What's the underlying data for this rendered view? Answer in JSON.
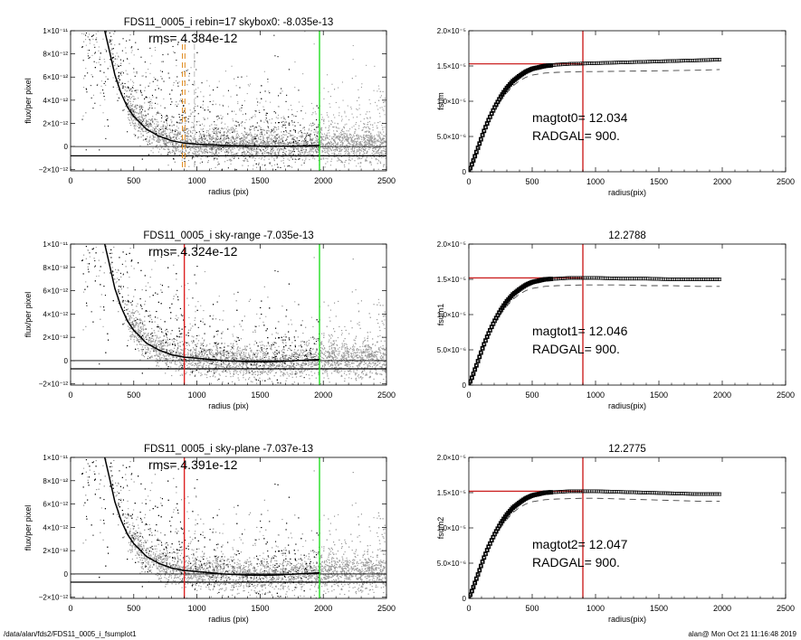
{
  "footer": {
    "path": "/data/alan/fds2/FDS11_0005_i_fsumplot1",
    "stamp": "alan@  Mon Oct 21 11:16:48 2019"
  },
  "chart_data": [
    {
      "type": "scatter",
      "title": "FDS11_0005_i rebin=17    skybox0: -8.035e-13",
      "annotation": "rms= 4.384e-12",
      "xlabel": "radius (pix)",
      "ylabel": "flux/per pixel",
      "xlim": [
        0,
        2500
      ],
      "ylim": [
        -2.1e-12,
        1e-11
      ],
      "xticks": [
        0,
        500,
        1000,
        1500,
        2000,
        2500
      ],
      "xtick_labels": [
        "0",
        "500",
        "1000",
        "1500",
        "2000",
        "2500"
      ],
      "yticks": [
        -2e-12,
        0,
        2e-12,
        4e-12,
        6e-12,
        8e-12,
        1e-11
      ],
      "ytick_labels": [
        "−2×10⁻¹²",
        "0",
        "2×10⁻¹²",
        "4×10⁻¹²",
        "6×10⁻¹²",
        "8×10⁻¹²",
        "1×10⁻¹¹"
      ],
      "hlines": [
        0,
        -8.035e-13
      ],
      "vlines": [
        {
          "x": 1970,
          "color": "#22dd22"
        }
      ],
      "dashed_vlines": [
        {
          "x": 885,
          "color": "#e08a1e"
        },
        {
          "x": 905,
          "color": "#e08a1e"
        },
        {
          "x": 980,
          "color": "#bbbbbb"
        }
      ],
      "profile": {
        "x": [
          270,
          300,
          350,
          400,
          450,
          500,
          600,
          700,
          800,
          900,
          1000,
          1200,
          1400,
          1600,
          1800,
          1970
        ],
        "y": [
          1e-11,
          8.6e-12,
          6.2e-12,
          4.6e-12,
          3.4e-12,
          2.6e-12,
          1.5e-12,
          9e-13,
          5e-13,
          3e-13,
          2e-13,
          1e-13,
          5e-14,
          3e-14,
          5e-14,
          1e-13
        ]
      },
      "scatter_colors": {
        "inner": "#000000",
        "outer": "#999999"
      }
    },
    {
      "type": "scatter",
      "title": "FDS11_0005_i sky-range -7.035e-13",
      "annotation": "rms= 4.324e-12",
      "xlabel": "radius (pix)",
      "ylabel": "flux/per pixel",
      "xlim": [
        0,
        2500
      ],
      "ylim": [
        -2.1e-12,
        1e-11
      ],
      "xticks": [
        0,
        500,
        1000,
        1500,
        2000,
        2500
      ],
      "xtick_labels": [
        "0",
        "500",
        "1000",
        "1500",
        "2000",
        "2500"
      ],
      "yticks": [
        -2e-12,
        0,
        2e-12,
        4e-12,
        6e-12,
        8e-12,
        1e-11
      ],
      "ytick_labels": [
        "−2×10⁻¹²",
        "0",
        "2×10⁻¹²",
        "4×10⁻¹²",
        "6×10⁻¹²",
        "8×10⁻¹²",
        "1×10⁻¹¹"
      ],
      "hlines": [
        0,
        -7.035e-13
      ],
      "vlines": [
        {
          "x": 900,
          "color": "#dd2222"
        },
        {
          "x": 1970,
          "color": "#22dd22"
        }
      ],
      "dashed_vlines": [],
      "profile": {
        "x": [
          270,
          300,
          350,
          400,
          450,
          500,
          600,
          700,
          800,
          900,
          1000,
          1200,
          1400,
          1600,
          1800,
          1970
        ],
        "y": [
          1e-11,
          8.6e-12,
          6.2e-12,
          4.6e-12,
          3.4e-12,
          2.6e-12,
          1.5e-12,
          9e-13,
          5e-13,
          3e-13,
          2e-13,
          0,
          -1e-13,
          -1e-13,
          0,
          1e-13
        ]
      },
      "scatter_colors": {
        "inner": "#000000",
        "outer": "#999999"
      }
    },
    {
      "type": "scatter",
      "title": "FDS11_0005_i sky-plane -7.037e-13",
      "annotation": "rms= 4.391e-12",
      "xlabel": "radius (pix)",
      "ylabel": "flux/per pixel",
      "xlim": [
        0,
        2500
      ],
      "ylim": [
        -2.1e-12,
        1e-11
      ],
      "xticks": [
        0,
        500,
        1000,
        1500,
        2000,
        2500
      ],
      "xtick_labels": [
        "0",
        "500",
        "1000",
        "1500",
        "2000",
        "2500"
      ],
      "yticks": [
        -2e-12,
        0,
        2e-12,
        4e-12,
        6e-12,
        8e-12,
        1e-11
      ],
      "ytick_labels": [
        "−2×10⁻¹²",
        "0",
        "2×10⁻¹²",
        "4×10⁻¹²",
        "6×10⁻¹²",
        "8×10⁻¹²",
        "1×10⁻¹¹"
      ],
      "hlines": [
        0,
        -7.037e-13
      ],
      "vlines": [
        {
          "x": 900,
          "color": "#dd2222"
        },
        {
          "x": 1970,
          "color": "#22dd22"
        }
      ],
      "dashed_vlines": [],
      "profile": {
        "x": [
          270,
          300,
          350,
          400,
          450,
          500,
          600,
          700,
          800,
          900,
          1000,
          1200,
          1400,
          1600,
          1800,
          1970
        ],
        "y": [
          1e-11,
          8.6e-12,
          6.2e-12,
          4.6e-12,
          3.4e-12,
          2.6e-12,
          1.5e-12,
          9e-13,
          5e-13,
          3e-13,
          2e-13,
          0,
          -1e-13,
          -1e-13,
          0,
          1e-13
        ]
      },
      "scatter_colors": {
        "inner": "#000000",
        "outer": "#999999"
      }
    },
    {
      "type": "line",
      "title": "",
      "annotation_lines": [
        "magtot0=  12.034",
        "RADGAL=    900."
      ],
      "xlabel": "radius(pix)",
      "ylabel": "fsum",
      "xlim": [
        0,
        2500
      ],
      "ylim": [
        0,
        2e-05
      ],
      "xticks": [
        0,
        500,
        1000,
        1500,
        2000,
        2500
      ],
      "xtick_labels": [
        "0",
        "500",
        "1000",
        "1500",
        "2000",
        "2500"
      ],
      "yticks": [
        0,
        5e-06,
        1e-05,
        1.5e-05,
        2e-05
      ],
      "ytick_labels": [
        "0",
        "5.0×10⁻⁶",
        "1.0×10⁻⁵",
        "1.5×10⁻⁵",
        "2.0×10⁻⁵"
      ],
      "vline": 900,
      "hline": 1.53e-05,
      "series": [
        {
          "style": "squares",
          "x": [
            0,
            30,
            60,
            90,
            120,
            150,
            200,
            250,
            300,
            350,
            400,
            450,
            500,
            600,
            700,
            800,
            900,
            1000,
            1200,
            1400,
            1600,
            1800,
            1980
          ],
          "y": [
            0,
            1.3e-06,
            2.8e-06,
            4.3e-06,
            5.8e-06,
            7.1e-06,
            9e-06,
            1.06e-05,
            1.19e-05,
            1.29e-05,
            1.36e-05,
            1.42e-05,
            1.46e-05,
            1.5e-05,
            1.52e-05,
            1.53e-05,
            1.535e-05,
            1.54e-05,
            1.55e-05,
            1.56e-05,
            1.57e-05,
            1.58e-05,
            1.59e-05
          ]
        },
        {
          "style": "dashed",
          "x": [
            0,
            30,
            60,
            90,
            120,
            150,
            200,
            250,
            300,
            350,
            400,
            450,
            500,
            600,
            700,
            800,
            900,
            1000,
            1200,
            1400,
            1600,
            1800,
            1980
          ],
          "y": [
            0,
            1.2e-06,
            2.6e-06,
            4e-06,
            5.4e-06,
            6.7e-06,
            8.5e-06,
            1e-05,
            1.12e-05,
            1.22e-05,
            1.29e-05,
            1.34e-05,
            1.37e-05,
            1.4e-05,
            1.41e-05,
            1.415e-05,
            1.42e-05,
            1.42e-05,
            1.425e-05,
            1.43e-05,
            1.435e-05,
            1.44e-05,
            1.45e-05
          ]
        }
      ]
    },
    {
      "type": "line",
      "title": "12.2788",
      "annotation_lines": [
        "magtot1=  12.046",
        "RADGAL=    900."
      ],
      "xlabel": "radius(pix)",
      "ylabel": "fsum1",
      "xlim": [
        0,
        2500
      ],
      "ylim": [
        0,
        2e-05
      ],
      "xticks": [
        0,
        500,
        1000,
        1500,
        2000,
        2500
      ],
      "xtick_labels": [
        "0",
        "500",
        "1000",
        "1500",
        "2000",
        "2500"
      ],
      "yticks": [
        0,
        5e-06,
        1e-05,
        1.5e-05,
        2e-05
      ],
      "ytick_labels": [
        "0",
        "5.0×10⁻⁶",
        "1.0×10⁻⁵",
        "1.5×10⁻⁵",
        "2.0×10⁻⁵"
      ],
      "vline": 900,
      "hline": 1.52e-05,
      "series": [
        {
          "style": "squares",
          "x": [
            0,
            30,
            60,
            90,
            120,
            150,
            200,
            250,
            300,
            350,
            400,
            450,
            500,
            600,
            700,
            800,
            900,
            1000,
            1200,
            1400,
            1600,
            1800,
            1980
          ],
          "y": [
            0,
            1.3e-06,
            2.8e-06,
            4.3e-06,
            5.8e-06,
            7.1e-06,
            9e-06,
            1.06e-05,
            1.19e-05,
            1.29e-05,
            1.36e-05,
            1.42e-05,
            1.46e-05,
            1.5e-05,
            1.51e-05,
            1.52e-05,
            1.52e-05,
            1.52e-05,
            1.51e-05,
            1.51e-05,
            1.5e-05,
            1.5e-05,
            1.5e-05
          ]
        },
        {
          "style": "dashed",
          "x": [
            0,
            30,
            60,
            90,
            120,
            150,
            200,
            250,
            300,
            350,
            400,
            450,
            500,
            600,
            700,
            800,
            900,
            1000,
            1200,
            1400,
            1600,
            1800,
            1980
          ],
          "y": [
            0,
            1.2e-06,
            2.6e-06,
            4e-06,
            5.4e-06,
            6.7e-06,
            8.5e-06,
            1e-05,
            1.12e-05,
            1.22e-05,
            1.29e-05,
            1.34e-05,
            1.37e-05,
            1.4e-05,
            1.41e-05,
            1.415e-05,
            1.42e-05,
            1.42e-05,
            1.42e-05,
            1.41e-05,
            1.41e-05,
            1.4e-05,
            1.4e-05
          ]
        }
      ]
    },
    {
      "type": "line",
      "title": "12.2775",
      "annotation_lines": [
        "magtot2=  12.047",
        "RADGAL=    900."
      ],
      "xlabel": "radius(pix)",
      "ylabel": "fsum2",
      "xlim": [
        0,
        2500
      ],
      "ylim": [
        0,
        2e-05
      ],
      "xticks": [
        0,
        500,
        1000,
        1500,
        2000,
        2500
      ],
      "xtick_labels": [
        "0",
        "500",
        "1000",
        "1500",
        "2000",
        "2500"
      ],
      "yticks": [
        0,
        5e-06,
        1e-05,
        1.5e-05,
        2e-05
      ],
      "ytick_labels": [
        "0",
        "5.0×10⁻⁶",
        "1.0×10⁻⁵",
        "1.5×10⁻⁵",
        "2.0×10⁻⁵"
      ],
      "vline": 900,
      "hline": 1.52e-05,
      "series": [
        {
          "style": "squares",
          "x": [
            0,
            30,
            60,
            90,
            120,
            150,
            200,
            250,
            300,
            350,
            400,
            450,
            500,
            600,
            700,
            800,
            900,
            1000,
            1200,
            1400,
            1600,
            1800,
            1980
          ],
          "y": [
            0,
            1.3e-06,
            2.8e-06,
            4.3e-06,
            5.8e-06,
            7.1e-06,
            9e-06,
            1.06e-05,
            1.19e-05,
            1.29e-05,
            1.36e-05,
            1.42e-05,
            1.46e-05,
            1.5e-05,
            1.51e-05,
            1.52e-05,
            1.52e-05,
            1.52e-05,
            1.51e-05,
            1.5e-05,
            1.49e-05,
            1.48e-05,
            1.48e-05
          ]
        },
        {
          "style": "dashed",
          "x": [
            0,
            30,
            60,
            90,
            120,
            150,
            200,
            250,
            300,
            350,
            400,
            450,
            500,
            600,
            700,
            800,
            900,
            1000,
            1200,
            1400,
            1600,
            1800,
            1980
          ],
          "y": [
            0,
            1.2e-06,
            2.6e-06,
            4e-06,
            5.4e-06,
            6.7e-06,
            8.5e-06,
            1e-05,
            1.12e-05,
            1.22e-05,
            1.29e-05,
            1.34e-05,
            1.37e-05,
            1.4e-05,
            1.41e-05,
            1.415e-05,
            1.42e-05,
            1.42e-05,
            1.41e-05,
            1.4e-05,
            1.39e-05,
            1.38e-05,
            1.38e-05
          ]
        }
      ]
    }
  ]
}
